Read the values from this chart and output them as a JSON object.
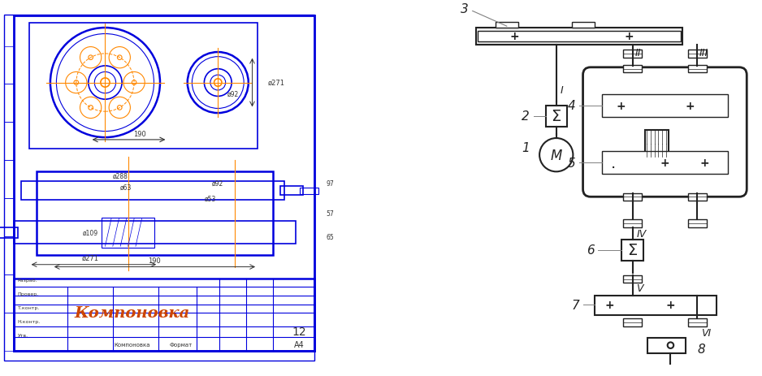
{
  "bg_color": "#ffffff",
  "left_panel_bg": "#ffffff",
  "border_color": "#0000cc",
  "title_text": "Компоновка",
  "title_font": "italic",
  "sheet_number": "12",
  "format_text": "А4",
  "label_color": "#333333",
  "drawing_blue": "#0000dd",
  "orange_color": "#ff8800",
  "diagram_color": "#222222",
  "shaft_labels": [
    "I",
    "II",
    "III",
    "IV",
    "V",
    "VI"
  ],
  "component_labels": [
    "1",
    "2",
    "3",
    "4",
    "5",
    "6",
    "7",
    "8"
  ]
}
